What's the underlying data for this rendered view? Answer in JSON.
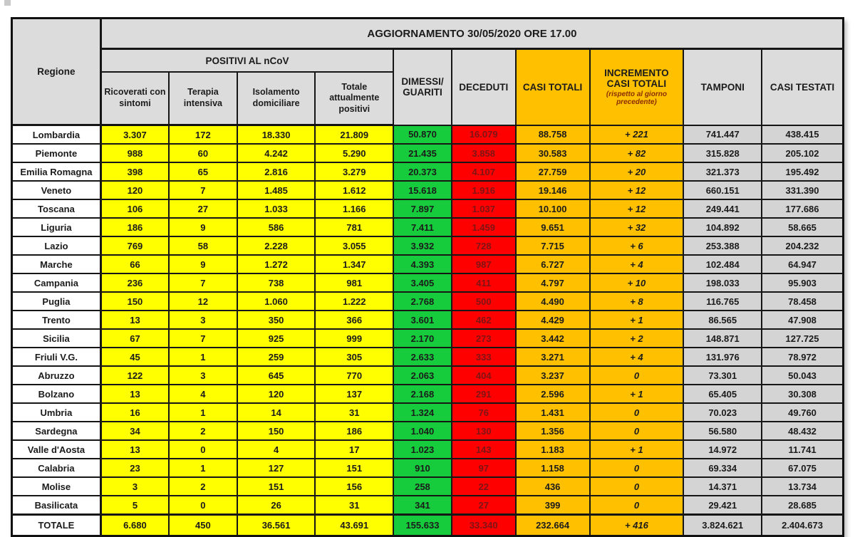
{
  "page_background": "#ffffff",
  "colors": {
    "yellow": "#ffff00",
    "green": "#17cc3c",
    "red": "#fe0000",
    "red_text": "#7e1416",
    "orange": "#ffc000",
    "header_grey": "#dcdcdc",
    "cell_grey": "#d4d4d4",
    "note_text": "#8b2e00"
  },
  "table": {
    "title": "AGGIORNAMENTO 30/05/2020 ORE 17.00",
    "corner_label": "Regione",
    "group_header": "POSITIVI AL nCoV",
    "sub_headers": {
      "ricoverati": "Ricoverati con sintomi",
      "terapia": "Terapia intensiva",
      "isolamento": "Isolamento domiciliare",
      "totale_positivi": "Totale attualmente positivi"
    },
    "column_headers": {
      "dimessi": "DIMESSI/\nGUARITI",
      "deceduti": "DECEDUTI",
      "casi_totali": "CASI TOTALI",
      "incremento": "INCREMENTO\nCASI  TOTALI",
      "incremento_note": "(rispetto al giorno precedente)",
      "tamponi": "TAMPONI",
      "casi_testati": "CASI TESTATI"
    },
    "cell_names": [
      "ricoverati-cell",
      "terapia-intensiva-cell",
      "isolamento-cell",
      "totale-positivi-cell",
      "dimessi-guariti-cell",
      "deceduti-cell",
      "casi-totali-cell",
      "incremento-cell",
      "tamponi-cell",
      "casi-testati-cell"
    ],
    "rows": [
      {
        "region": "Lombardia",
        "cells": [
          "3.307",
          "172",
          "18.330",
          "21.809",
          "50.870",
          "16.079",
          "88.758",
          "+ 221",
          "741.447",
          "438.415"
        ]
      },
      {
        "region": "Piemonte",
        "cells": [
          "988",
          "60",
          "4.242",
          "5.290",
          "21.435",
          "3.858",
          "30.583",
          "+ 82",
          "315.828",
          "205.102"
        ]
      },
      {
        "region": "Emilia Romagna",
        "cells": [
          "398",
          "65",
          "2.816",
          "3.279",
          "20.373",
          "4.107",
          "27.759",
          "+ 20",
          "321.373",
          "195.492"
        ]
      },
      {
        "region": "Veneto",
        "cells": [
          "120",
          "7",
          "1.485",
          "1.612",
          "15.618",
          "1.916",
          "19.146",
          "+ 12",
          "660.151",
          "331.390"
        ]
      },
      {
        "region": "Toscana",
        "cells": [
          "106",
          "27",
          "1.033",
          "1.166",
          "7.897",
          "1.037",
          "10.100",
          "+ 12",
          "249.441",
          "177.686"
        ]
      },
      {
        "region": "Liguria",
        "cells": [
          "186",
          "9",
          "586",
          "781",
          "7.411",
          "1.459",
          "9.651",
          "+ 32",
          "104.892",
          "58.665"
        ]
      },
      {
        "region": "Lazio",
        "cells": [
          "769",
          "58",
          "2.228",
          "3.055",
          "3.932",
          "728",
          "7.715",
          "+ 6",
          "253.388",
          "204.232"
        ]
      },
      {
        "region": "Marche",
        "cells": [
          "66",
          "9",
          "1.272",
          "1.347",
          "4.393",
          "987",
          "6.727",
          "+ 4",
          "102.484",
          "64.947"
        ]
      },
      {
        "region": "Campania",
        "cells": [
          "236",
          "7",
          "738",
          "981",
          "3.405",
          "411",
          "4.797",
          "+ 10",
          "198.033",
          "95.903"
        ]
      },
      {
        "region": "Puglia",
        "cells": [
          "150",
          "12",
          "1.060",
          "1.222",
          "2.768",
          "500",
          "4.490",
          "+ 8",
          "116.765",
          "78.458"
        ]
      },
      {
        "region": "Trento",
        "cells": [
          "13",
          "3",
          "350",
          "366",
          "3.601",
          "462",
          "4.429",
          "+ 1",
          "86.565",
          "47.908"
        ]
      },
      {
        "region": "Sicilia",
        "cells": [
          "67",
          "7",
          "925",
          "999",
          "2.170",
          "273",
          "3.442",
          "+ 2",
          "148.871",
          "127.725"
        ]
      },
      {
        "region": "Friuli V.G.",
        "cells": [
          "45",
          "1",
          "259",
          "305",
          "2.633",
          "333",
          "3.271",
          "+ 4",
          "131.976",
          "78.972"
        ]
      },
      {
        "region": "Abruzzo",
        "cells": [
          "122",
          "3",
          "645",
          "770",
          "2.063",
          "404",
          "3.237",
          "0",
          "73.301",
          "50.043"
        ]
      },
      {
        "region": "Bolzano",
        "cells": [
          "13",
          "4",
          "120",
          "137",
          "2.168",
          "291",
          "2.596",
          "+ 1",
          "65.405",
          "30.308"
        ]
      },
      {
        "region": "Umbria",
        "cells": [
          "16",
          "1",
          "14",
          "31",
          "1.324",
          "76",
          "1.431",
          "0",
          "70.023",
          "49.760"
        ]
      },
      {
        "region": "Sardegna",
        "cells": [
          "34",
          "2",
          "150",
          "186",
          "1.040",
          "130",
          "1.356",
          "0",
          "56.580",
          "48.432"
        ]
      },
      {
        "region": "Valle d'Aosta",
        "cells": [
          "13",
          "0",
          "4",
          "17",
          "1.023",
          "143",
          "1.183",
          "+ 1",
          "14.972",
          "11.741"
        ]
      },
      {
        "region": "Calabria",
        "cells": [
          "23",
          "1",
          "127",
          "151",
          "910",
          "97",
          "1.158",
          "0",
          "69.334",
          "67.075"
        ]
      },
      {
        "region": "Molise",
        "cells": [
          "3",
          "2",
          "151",
          "156",
          "258",
          "22",
          "436",
          "0",
          "14.371",
          "13.734"
        ]
      },
      {
        "region": "Basilicata",
        "cells": [
          "5",
          "0",
          "26",
          "31",
          "341",
          "27",
          "399",
          "0",
          "29.421",
          "28.685"
        ]
      },
      {
        "region": "TOTALE",
        "cells": [
          "6.680",
          "450",
          "36.561",
          "43.691",
          "155.633",
          "33.340",
          "232.664",
          "+ 416",
          "3.824.621",
          "2.404.673"
        ]
      }
    ]
  }
}
